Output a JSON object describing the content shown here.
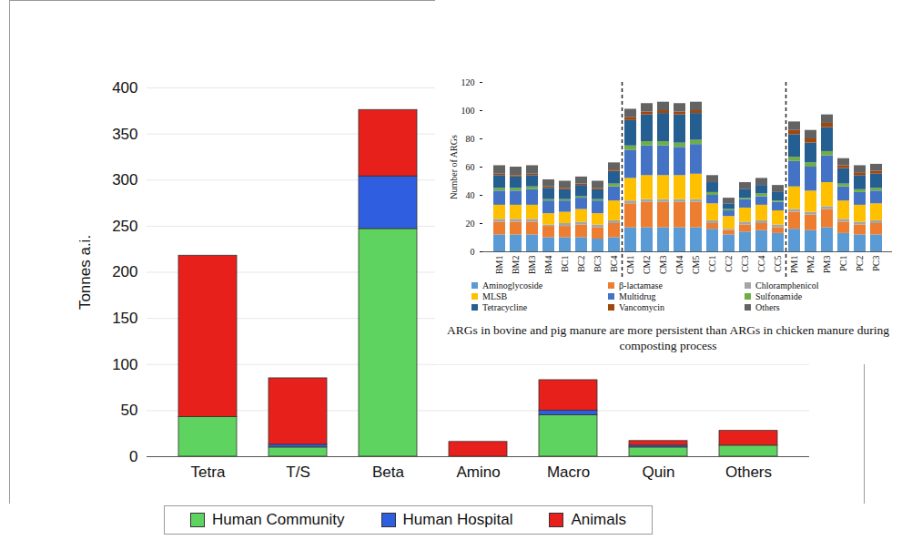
{
  "chart_data": [
    {
      "type": "bar",
      "stacked": true,
      "y_label": "Tonnes a.i.",
      "categories": [
        "Tetra",
        "T/S",
        "Beta",
        "Amino",
        "Macro",
        "Quin",
        "Others"
      ],
      "series": [
        {
          "name": "Human Community",
          "color": "#5fd35f",
          "values": [
            43,
            10,
            247,
            0,
            45,
            10,
            12
          ]
        },
        {
          "name": "Human Hospital",
          "color": "#2f5fe0",
          "values": [
            0,
            3,
            57,
            0,
            5,
            2,
            0
          ]
        },
        {
          "name": "Animals",
          "color": "#e8201c",
          "values": [
            175,
            72,
            72,
            16,
            33,
            5,
            16
          ]
        }
      ],
      "ylim": [
        0,
        400
      ],
      "yticks": [
        0,
        50,
        100,
        150,
        200,
        250,
        300,
        350,
        400
      ],
      "grid": true,
      "legend": "bottom"
    },
    {
      "type": "bar",
      "stacked": true,
      "y_label": "Number of ARGs",
      "caption": "ARGs in bovine and pig manure are more persistent than ARGs in chicken manure during composting process",
      "categories": [
        "BM1",
        "BM2",
        "BM3",
        "BM4",
        "BC1",
        "BC2",
        "BC3",
        "BC4",
        "CM1",
        "CM2",
        "CM3",
        "CM4",
        "CM5",
        "CC1",
        "CC2",
        "CC3",
        "CC4",
        "CC5",
        "PM1",
        "PM2",
        "PM3",
        "PC1",
        "PC2",
        "PC3"
      ],
      "series": [
        {
          "name": "Aminoglycoside",
          "color": "#5b9bd5",
          "values": [
            12,
            12,
            12,
            10,
            10,
            10,
            9,
            10,
            17,
            17,
            17,
            17,
            17,
            16,
            12,
            14,
            15,
            13,
            16,
            15,
            17,
            13,
            12,
            12
          ]
        },
        {
          "name": "β-lactamase",
          "color": "#ed7d31",
          "values": [
            9,
            9,
            9,
            8,
            8,
            9,
            8,
            10,
            17,
            18,
            18,
            18,
            18,
            4,
            3,
            5,
            5,
            4,
            12,
            11,
            13,
            8,
            7,
            8
          ]
        },
        {
          "name": "Chloramphenicol",
          "color": "#a5a5a5",
          "values": [
            2,
            2,
            2,
            1,
            2,
            2,
            2,
            2,
            2,
            2,
            2,
            2,
            2,
            2,
            1,
            2,
            2,
            2,
            2,
            2,
            2,
            2,
            2,
            2
          ]
        },
        {
          "name": "MLSB",
          "color": "#ffc000",
          "values": [
            10,
            10,
            10,
            8,
            8,
            9,
            8,
            14,
            16,
            17,
            17,
            17,
            18,
            12,
            9,
            10,
            11,
            10,
            16,
            15,
            17,
            13,
            12,
            12
          ]
        },
        {
          "name": "Multidrug",
          "color": "#4472c4",
          "values": [
            10,
            10,
            11,
            9,
            8,
            8,
            9,
            10,
            20,
            21,
            21,
            20,
            21,
            6,
            4,
            6,
            6,
            6,
            18,
            17,
            19,
            10,
            9,
            9
          ]
        },
        {
          "name": "Sulfonamide",
          "color": "#70ad47",
          "values": [
            2,
            2,
            2,
            1,
            1,
            1,
            1,
            2,
            3,
            3,
            3,
            3,
            3,
            2,
            1,
            1,
            2,
            1,
            3,
            3,
            3,
            2,
            2,
            2
          ]
        },
        {
          "name": "Tetracycline",
          "color": "#255e91",
          "values": [
            9,
            8,
            8,
            8,
            7,
            8,
            7,
            9,
            18,
            19,
            20,
            20,
            19,
            7,
            4,
            6,
            6,
            6,
            16,
            14,
            17,
            11,
            10,
            10
          ]
        },
        {
          "name": "Vancomycin",
          "color": "#9e480e",
          "values": [
            1,
            1,
            1,
            1,
            1,
            1,
            1,
            1,
            2,
            2,
            2,
            2,
            2,
            0,
            0,
            0,
            0,
            0,
            3,
            3,
            3,
            2,
            2,
            2
          ]
        },
        {
          "name": "Others",
          "color": "#636363",
          "values": [
            6,
            6,
            6,
            5,
            5,
            5,
            5,
            5,
            6,
            6,
            6,
            6,
            6,
            5,
            4,
            5,
            5,
            5,
            6,
            6,
            6,
            5,
            5,
            5
          ]
        }
      ],
      "ylim": [
        0,
        120
      ],
      "yticks": [
        0,
        20,
        40,
        60,
        80,
        100,
        120
      ],
      "legend": "bottom"
    }
  ]
}
